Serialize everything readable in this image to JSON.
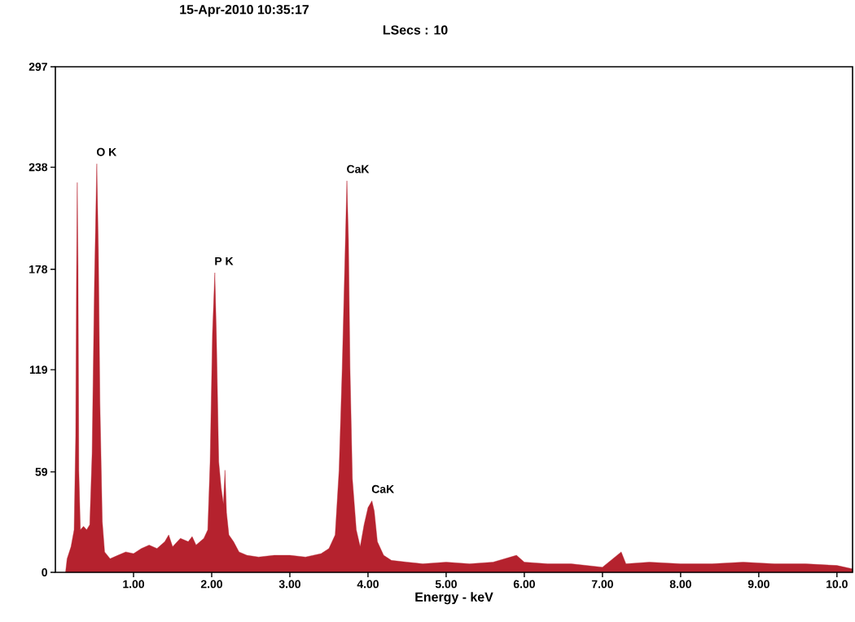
{
  "chart_data": {
    "type": "area",
    "title": "15-Apr-2010 10:35:17",
    "subtitle": "LSecs : 10",
    "xlabel": "Energy - keV",
    "xlim": [
      0,
      10.2
    ],
    "xticks": [
      {
        "value": 1,
        "label": "1.00"
      },
      {
        "value": 2,
        "label": "2.00"
      },
      {
        "value": 3,
        "label": "3.00"
      },
      {
        "value": 4,
        "label": "4.00"
      },
      {
        "value": 5,
        "label": "5.00"
      },
      {
        "value": 6,
        "label": "6.00"
      },
      {
        "value": 7,
        "label": "7.00"
      },
      {
        "value": 8,
        "label": "8.00"
      },
      {
        "value": 9,
        "label": "9.00"
      },
      {
        "value": 10,
        "label": "10.0"
      }
    ],
    "ylim": [
      0,
      297
    ],
    "yticks": [
      0,
      59,
      119,
      178,
      238,
      297
    ],
    "annotations": [
      {
        "text": "O K",
        "x": 0.53,
        "y": 240
      },
      {
        "text": "P K",
        "x": 2.04,
        "y": 176
      },
      {
        "text": "CaK",
        "x": 3.73,
        "y": 230
      },
      {
        "text": "CaK",
        "x": 4.05,
        "y": 42
      }
    ],
    "x": [
      0.13,
      0.15,
      0.2,
      0.24,
      0.26,
      0.27,
      0.28,
      0.29,
      0.3,
      0.32,
      0.36,
      0.4,
      0.44,
      0.47,
      0.5,
      0.53,
      0.55,
      0.57,
      0.6,
      0.63,
      0.7,
      0.8,
      0.9,
      1.0,
      1.1,
      1.2,
      1.3,
      1.4,
      1.45,
      1.5,
      1.6,
      1.7,
      1.75,
      1.8,
      1.9,
      1.95,
      1.98,
      2.01,
      2.04,
      2.06,
      2.09,
      2.12,
      2.15,
      2.17,
      2.19,
      2.22,
      2.28,
      2.35,
      2.45,
      2.6,
      2.8,
      3.0,
      3.2,
      3.4,
      3.5,
      3.58,
      3.63,
      3.67,
      3.7,
      3.73,
      3.75,
      3.77,
      3.8,
      3.85,
      3.9,
      3.95,
      4.0,
      4.05,
      4.08,
      4.12,
      4.2,
      4.3,
      4.5,
      4.7,
      5.0,
      5.3,
      5.6,
      5.9,
      6.0,
      6.3,
      6.6,
      7.0,
      7.24,
      7.3,
      7.6,
      8.0,
      8.4,
      8.8,
      9.2,
      9.6,
      10.0,
      10.2
    ],
    "series": [
      {
        "color": "#b5222e",
        "values": [
          0,
          8,
          15,
          25,
          80,
          170,
          229,
          180,
          60,
          25,
          27,
          25,
          28,
          70,
          170,
          240,
          190,
          100,
          30,
          12,
          8,
          10,
          12,
          11,
          14,
          16,
          14,
          18,
          22,
          15,
          20,
          18,
          21,
          16,
          20,
          25,
          65,
          140,
          176,
          140,
          65,
          50,
          40,
          60,
          35,
          22,
          18,
          12,
          10,
          9,
          10,
          10,
          9,
          11,
          14,
          22,
          60,
          120,
          175,
          230,
          195,
          120,
          55,
          25,
          15,
          28,
          38,
          42,
          36,
          18,
          10,
          7,
          6,
          5,
          6,
          5,
          6,
          10,
          6,
          5,
          5,
          3,
          12,
          5,
          6,
          5,
          5,
          6,
          5,
          5,
          4,
          2
        ]
      }
    ]
  }
}
